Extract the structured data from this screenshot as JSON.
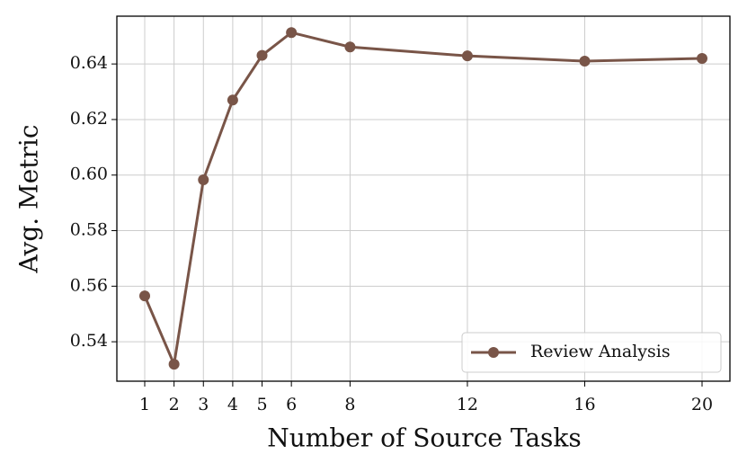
{
  "chart_data": {
    "type": "line",
    "xlabel": "Number of Source Tasks",
    "ylabel": "Avg. Metric",
    "x": [
      1,
      2,
      3,
      4,
      5,
      6,
      8,
      12,
      16,
      20
    ],
    "series": [
      {
        "name": "Review Analysis",
        "color": "#795548",
        "values": [
          0.5565,
          0.5319,
          0.5983,
          0.627,
          0.6431,
          0.6513,
          0.6461,
          0.6429,
          0.641,
          0.642
        ]
      }
    ],
    "xlim": [
      0.05,
      20.95
    ],
    "xticks": [
      1,
      2,
      3,
      4,
      5,
      6,
      8,
      12,
      16,
      20
    ],
    "ylim": [
      0.5258,
      0.6572
    ],
    "yticks": [
      {
        "value": 0.54,
        "label": "0.54"
      },
      {
        "value": 0.56,
        "label": "0.56"
      },
      {
        "value": 0.58,
        "label": "0.58"
      },
      {
        "value": 0.6,
        "label": "0.60"
      },
      {
        "value": 0.62,
        "label": "0.62"
      },
      {
        "value": 0.64,
        "label": "0.64"
      }
    ],
    "grid": true,
    "legend": "lower right"
  }
}
